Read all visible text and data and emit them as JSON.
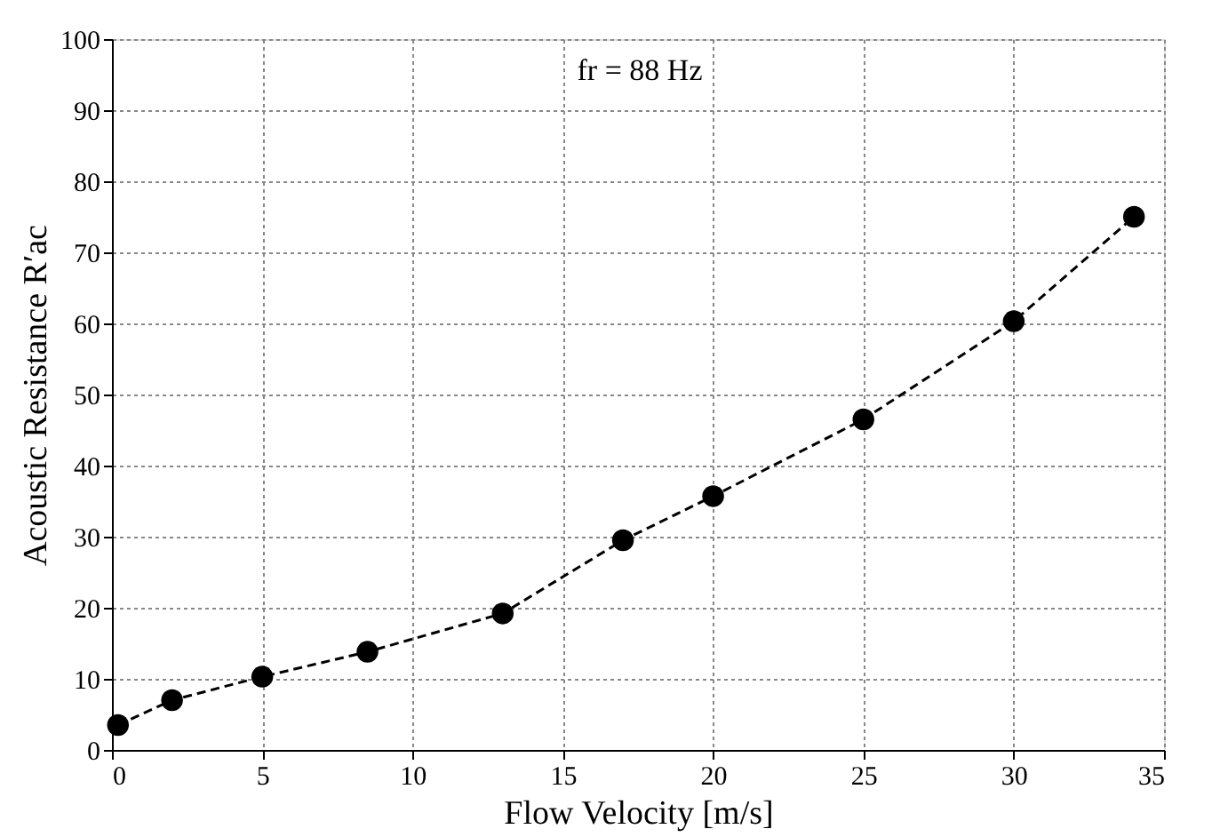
{
  "chart_data": {
    "type": "line",
    "xlabel": "Flow Velocity [m/s]",
    "ylabel": "Acoustic Resistance R′ac",
    "annotations": [
      "fr = 88 Hz"
    ],
    "x": [
      0.2,
      2,
      5,
      8.5,
      13,
      17,
      20,
      25,
      30,
      34
    ],
    "series": [
      {
        "color": "#000000",
        "values": [
          3.5,
          7,
          10.3,
          13.8,
          19.2,
          29.5,
          35.7,
          46.5,
          60.3,
          75
        ]
      }
    ],
    "xlim": [
      0,
      35
    ],
    "xticks": [
      0,
      5,
      10,
      15,
      20,
      25,
      30,
      35
    ],
    "ylim": [
      0,
      100
    ],
    "yticks": [
      0,
      10,
      20,
      30,
      40,
      50,
      60,
      70,
      80,
      90,
      100
    ],
    "grid": true,
    "marker": "circle",
    "line_style": "dashed"
  }
}
